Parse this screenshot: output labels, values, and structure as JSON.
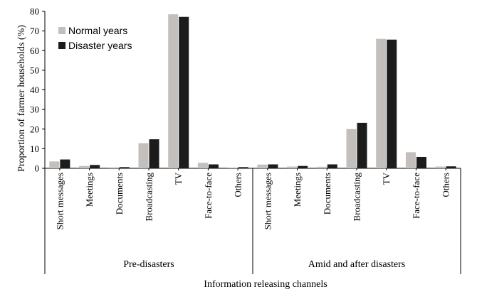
{
  "chart_data": {
    "type": "bar",
    "ylabel": "Proportion of farmer households (%)",
    "xlabel": "Information releasing channels",
    "ylim": [
      0,
      80
    ],
    "yticks": [
      0,
      10,
      20,
      30,
      40,
      50,
      60,
      70,
      80
    ],
    "grid": false,
    "legend_position": "top-left",
    "groups": [
      {
        "label": "Pre-disasters",
        "categories": [
          "Short messages",
          "Meetings",
          "Documents",
          "Broadcasting",
          "TV",
          "Face-to-face",
          "Others"
        ],
        "series": [
          {
            "name": "Normal years",
            "values": [
              3.5,
              1.2,
              0.5,
              12.8,
              78.5,
              2.8,
              0.4
            ]
          },
          {
            "name": "Disaster years",
            "values": [
              4.5,
              1.7,
              0.6,
              14.8,
              77.2,
              2.0,
              0.6
            ]
          }
        ]
      },
      {
        "label": "Amid and after disasters",
        "categories": [
          "Short messages",
          "Meetings",
          "Documents",
          "Broadcasting",
          "TV",
          "Face-to-face",
          "Others"
        ],
        "series": [
          {
            "name": "Normal years",
            "values": [
              1.9,
              0.9,
              0.8,
              20.0,
              66.0,
              8.2,
              0.9
            ]
          },
          {
            "name": "Disaster years",
            "values": [
              2.0,
              1.2,
              2.0,
              23.2,
              65.6,
              5.8,
              1.0
            ]
          }
        ]
      }
    ],
    "series_colors": {
      "Normal years": "#c3bfbd",
      "Disaster years": "#1c1c1c"
    }
  }
}
